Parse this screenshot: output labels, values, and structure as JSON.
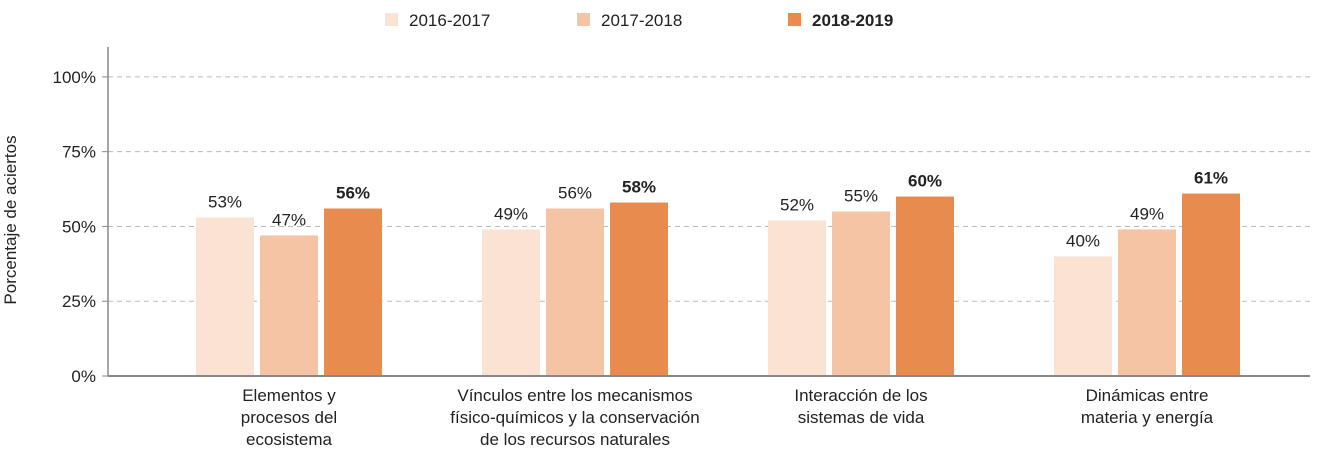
{
  "chart_data": {
    "type": "bar",
    "y_label": "Porcentaje de aciertos",
    "categories": [
      "Elementos y\nprocesos del\necosistema",
      "Vínculos entre los mecanismos\nfísico-químicos y la conservación\nde los recursos naturales",
      "Interacción de los\nsistemas de vida",
      "Dinámicas entre\nmateria y energía"
    ],
    "series": [
      {
        "name": "2016-2017",
        "color": "#fbe3d4",
        "values": [
          53,
          49,
          52,
          40
        ],
        "value_labels": [
          "53%",
          "49%",
          "52%",
          "40%"
        ]
      },
      {
        "name": "2017-2018",
        "color": "#f5c4a4",
        "values": [
          47,
          56,
          55,
          49
        ],
        "value_labels": [
          "47%",
          "56%",
          "55%",
          "49%"
        ]
      },
      {
        "name": "2018-2019",
        "color": "#e88b4f",
        "values": [
          56,
          58,
          60,
          61
        ],
        "value_labels": [
          "56%",
          "58%",
          "60%",
          "61%"
        ],
        "bold": true
      }
    ],
    "ylim": [
      0,
      110
    ],
    "yticks": [
      {
        "value": 0,
        "label": "0%"
      },
      {
        "value": 25,
        "label": "25%"
      },
      {
        "value": 50,
        "label": "50%"
      },
      {
        "value": 75,
        "label": "75%"
      },
      {
        "value": 100,
        "label": "100%"
      }
    ],
    "grid": true,
    "legend": "top"
  }
}
